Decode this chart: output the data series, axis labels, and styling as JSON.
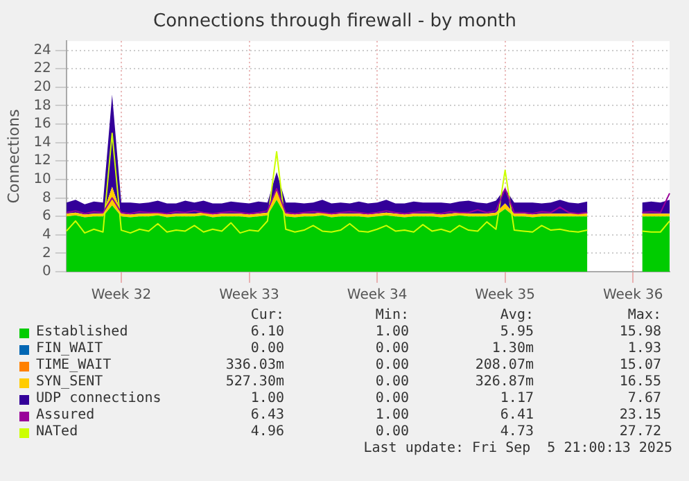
{
  "chart_data": {
    "type": "area",
    "title": "Connections through firewall - by month",
    "ylabel": "Connections",
    "stacked": true,
    "grid": true,
    "legend": "bottom",
    "categories": [
      null,
      null,
      null,
      null,
      null,
      null,
      "Week 32",
      null,
      null,
      null,
      null,
      null,
      null,
      null,
      null,
      null,
      null,
      null,
      null,
      null,
      "Week 33",
      null,
      null,
      null,
      null,
      null,
      null,
      null,
      null,
      null,
      null,
      null,
      null,
      null,
      "Week 34",
      null,
      null,
      null,
      null,
      null,
      null,
      null,
      null,
      null,
      null,
      null,
      null,
      null,
      "Week 35",
      null,
      null,
      null,
      null,
      null,
      null,
      null,
      null,
      null,
      null,
      null,
      null,
      null,
      "Week 36",
      null,
      null,
      null,
      null
    ],
    "ylim": [
      0,
      25
    ],
    "yticks": [
      0,
      2,
      4,
      6,
      8,
      10,
      12,
      14,
      16,
      18,
      20,
      22,
      24
    ],
    "series": [
      {
        "name": "Established",
        "color": "#00cc00",
        "values": [
          6,
          6.1,
          5.9,
          6,
          6,
          7.2,
          6,
          5.9,
          6,
          6,
          6.1,
          5.9,
          6,
          6,
          6,
          6.1,
          5.9,
          6,
          6,
          6,
          5.9,
          6,
          6.1,
          7.8,
          6,
          5.9,
          6,
          6,
          6.1,
          5.9,
          6,
          6,
          6,
          5.9,
          6,
          6.1,
          6,
          5.9,
          6,
          6,
          6,
          5.9,
          6,
          6.1,
          6,
          6,
          6,
          6.1,
          6.8,
          6,
          6,
          5.9,
          6,
          6,
          6,
          6,
          6,
          6,
          null,
          null,
          null,
          null,
          null,
          6,
          6,
          6,
          6
        ]
      },
      {
        "name": "FIN_WAIT",
        "color": "#0066b3",
        "values": [
          null,
          null,
          null,
          null,
          null,
          null,
          null,
          null,
          null,
          null,
          null,
          null,
          null,
          null,
          null,
          null,
          null,
          null,
          null,
          null,
          null,
          null,
          null,
          null,
          null,
          null,
          null,
          null,
          null,
          null,
          null,
          null,
          null,
          null,
          null,
          null,
          null,
          null,
          null,
          null,
          null,
          null,
          null,
          null,
          null,
          null,
          null,
          null,
          null,
          null,
          null,
          null,
          null,
          null,
          null,
          null,
          null,
          null,
          null,
          null,
          null,
          null,
          null,
          null,
          null,
          null,
          null
        ]
      },
      {
        "name": "TIME_WAIT",
        "color": "#ff8000",
        "values": [
          null,
          null,
          null,
          null,
          null,
          null,
          null,
          null,
          null,
          null,
          null,
          null,
          null,
          null,
          null,
          null,
          null,
          null,
          null,
          null,
          null,
          null,
          null,
          null,
          null,
          null,
          null,
          null,
          null,
          null,
          null,
          null,
          null,
          null,
          null,
          null,
          null,
          null,
          null,
          null,
          null,
          null,
          null,
          null,
          null,
          null,
          null,
          null,
          null,
          null,
          null,
          null,
          null,
          null,
          null,
          null,
          null,
          null,
          null,
          null,
          null,
          null,
          null,
          null,
          null,
          null,
          null
        ]
      },
      {
        "name": "SYN_SENT",
        "color": "#ffcc00",
        "values": [
          0.3,
          0.3,
          0.3,
          0.3,
          0.3,
          2,
          0.3,
          0.3,
          0.3,
          0.3,
          0.3,
          0.3,
          0.3,
          0.3,
          0.3,
          0.3,
          0.3,
          0.3,
          0.3,
          0.3,
          0.3,
          0.3,
          0.3,
          1,
          0.3,
          0.3,
          0.3,
          0.3,
          0.3,
          0.3,
          0.3,
          0.3,
          0.3,
          0.3,
          0.3,
          0.3,
          0.3,
          0.3,
          0.3,
          0.3,
          0.3,
          0.3,
          0.3,
          0.3,
          0.3,
          0.3,
          0.3,
          0.3,
          0.6,
          0.3,
          0.3,
          0.3,
          0.3,
          0.3,
          0.3,
          0.3,
          0.3,
          0.3,
          null,
          null,
          null,
          null,
          null,
          0.3,
          0.3,
          0.3,
          0.3
        ]
      },
      {
        "name": "UDP connections",
        "color": "#330099",
        "values": [
          1.2,
          1.4,
          1.1,
          1.3,
          1.2,
          10,
          1.2,
          1.3,
          1.1,
          1.2,
          1.3,
          1.2,
          1.1,
          1.4,
          1.2,
          1.3,
          1.2,
          1.1,
          1.3,
          1.2,
          1.2,
          1.3,
          1.1,
          2,
          1.2,
          1.3,
          1.1,
          1.2,
          1.4,
          1.2,
          1.2,
          1.1,
          1.3,
          1.2,
          1.2,
          1.4,
          1.1,
          1.2,
          1.3,
          1.2,
          1.2,
          1.3,
          1.1,
          1.2,
          1.4,
          1.2,
          1.1,
          1.3,
          1.6,
          1.2,
          1.2,
          1.3,
          1.1,
          1.2,
          1.5,
          1.2,
          1.1,
          1.3,
          null,
          null,
          null,
          null,
          null,
          1.2,
          1.3,
          1.2,
          1.5
        ]
      },
      {
        "name": "Assured",
        "color": "#990099",
        "type": "line",
        "values": [
          6.4,
          6.6,
          6.3,
          6.5,
          6.4,
          8,
          6.4,
          6.3,
          6.5,
          6.4,
          6.4,
          6.3,
          6.5,
          6.4,
          6.6,
          6.4,
          6.3,
          6.4,
          6.5,
          6.4,
          6.3,
          6.4,
          6.6,
          9,
          6.4,
          6.3,
          6.4,
          6.5,
          6.4,
          6.3,
          6.4,
          6.5,
          6.4,
          6.3,
          6.4,
          6.6,
          6.4,
          6.3,
          6.4,
          6.5,
          6.4,
          6.3,
          6.5,
          6.4,
          6.4,
          6.7,
          6.4,
          6.6,
          9,
          6.4,
          6.4,
          6.3,
          6.5,
          6.4,
          7,
          6.4,
          6.3,
          6.4,
          null,
          null,
          null,
          null,
          null,
          6.4,
          6.5,
          6.4,
          8.5
        ]
      },
      {
        "name": "NATed",
        "color": "#ccff00",
        "type": "line",
        "values": [
          4.4,
          5.5,
          4.2,
          4.6,
          4.3,
          15,
          4.5,
          4.2,
          4.6,
          4.4,
          5.2,
          4.3,
          4.5,
          4.4,
          5,
          4.3,
          4.6,
          4.4,
          5.3,
          4.2,
          4.5,
          4.4,
          5.5,
          13,
          4.6,
          4.3,
          4.5,
          5,
          4.4,
          4.3,
          4.5,
          5.2,
          4.4,
          4.3,
          4.6,
          5,
          4.4,
          4.5,
          4.3,
          5.1,
          4.4,
          4.6,
          4.3,
          5,
          4.5,
          4.4,
          5.4,
          4.6,
          11,
          4.5,
          4.4,
          4.3,
          5,
          4.5,
          4.6,
          4.4,
          4.3,
          4.5,
          null,
          null,
          null,
          null,
          null,
          4.4,
          4.3,
          4.3,
          5.5
        ]
      }
    ],
    "annotations": [
      "Cur:",
      "Min:",
      "Avg:",
      "Max:",
      "6.10",
      "1.00",
      "5.95",
      "15.98",
      "0.00",
      "0.00",
      "1.30m",
      "1.93",
      "336.03m",
      "0.00",
      "208.07m",
      "15.07",
      "527.30m",
      "0.00",
      "326.87m",
      "16.55",
      "1.00",
      "0.00",
      "1.17",
      "7.67",
      "6.43",
      "1.00",
      "6.41",
      "23.15",
      "4.96",
      "0.00",
      "4.73",
      "27.72",
      "Last update: Fri Sep  5 21:00:13 2025"
    ]
  }
}
